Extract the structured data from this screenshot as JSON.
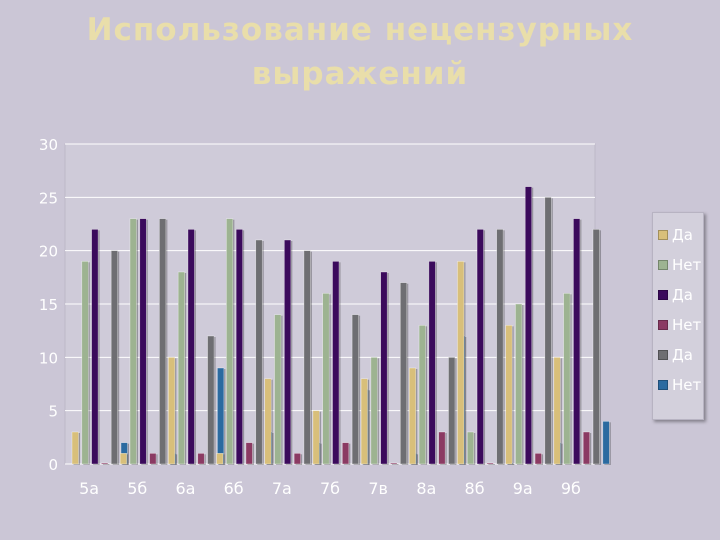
{
  "slide": {
    "title_line1": "Использование нецензурных",
    "title_line2": "выражений"
  },
  "chart_data": {
    "type": "bar",
    "title": "",
    "xlabel": "",
    "ylabel": "",
    "ylim": [
      0,
      30
    ],
    "yticks": [
      0,
      5,
      10,
      15,
      20,
      25,
      30
    ],
    "grid": true,
    "legend_placement": "right",
    "categories": [
      "5а",
      "5б",
      "6а",
      "6б",
      "7а",
      "7б",
      "7в",
      "8а",
      "8б",
      "9а",
      "9б"
    ],
    "series": [
      {
        "name": "Да",
        "color": "#d8bf7a",
        "values": [
          3,
          1,
          10,
          1,
          8,
          5,
          8,
          9,
          19,
          13,
          10
        ]
      },
      {
        "name": "Нет",
        "color": "#9db391",
        "values": [
          19,
          23,
          18,
          23,
          14,
          16,
          10,
          13,
          3,
          15,
          16
        ]
      },
      {
        "name": "Да",
        "color": "#3b0a5c",
        "values": [
          22,
          23,
          22,
          22,
          21,
          19,
          18,
          19,
          22,
          26,
          23
        ]
      },
      {
        "name": "Нет",
        "color": "#8b3a63",
        "values": [
          0,
          1,
          1,
          2,
          1,
          2,
          0,
          3,
          0,
          1,
          3
        ]
      },
      {
        "name": "Да",
        "color": "#6e6e72",
        "values": [
          20,
          23,
          12,
          21,
          20,
          14,
          17,
          10,
          22,
          25,
          22
        ]
      },
      {
        "name": "Нет",
        "color": "#2b6aa0",
        "values": [
          2,
          1,
          9,
          3,
          2,
          7,
          1,
          12,
          0,
          2,
          4
        ]
      }
    ]
  }
}
